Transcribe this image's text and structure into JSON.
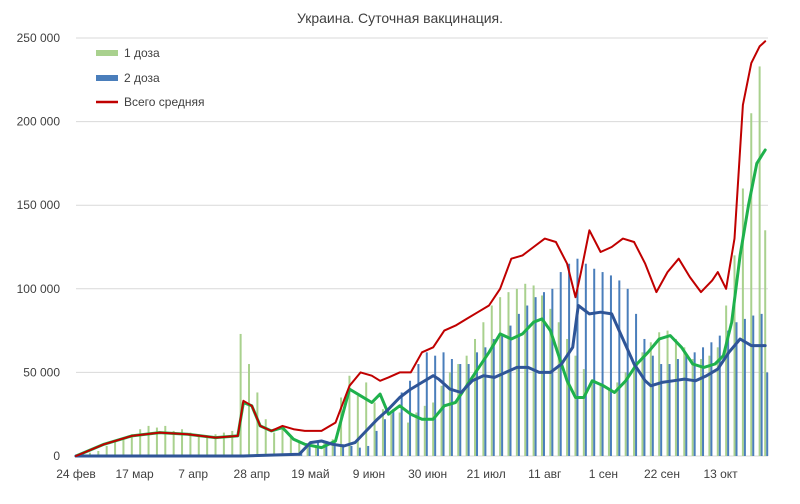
{
  "chart_data": {
    "type": "bar",
    "title": "Украина. Суточная вакцинация.",
    "xlabel": "",
    "ylabel": "",
    "ylim": [
      0,
      250000
    ],
    "y_ticks": [
      0,
      50000,
      100000,
      150000,
      200000,
      250000
    ],
    "y_tick_labels": [
      "0",
      "50 000",
      "100 000",
      "150 000",
      "200 000",
      "250 000"
    ],
    "x_range_days": [
      0,
      248
    ],
    "x_ticks": [
      0,
      21,
      42,
      63,
      84,
      105,
      126,
      147,
      168,
      189,
      210,
      231
    ],
    "x_tick_labels": [
      "24 фев",
      "17 мар",
      "7 апр",
      "28 апр",
      "19 май",
      "9 июн",
      "30 июн",
      "21 июл",
      "11 авг",
      "1 сен",
      "22 сен",
      "13 окт"
    ],
    "grid": "horizontal",
    "legend": {
      "position": "top-left",
      "entries": [
        "1 доза",
        "2 доза",
        "Всего средняя"
      ]
    },
    "colors": {
      "dose1": "#a9d18e",
      "dose2": "#4a7ebb",
      "total_avg": "#c00000",
      "dose1_avg": "#1fb14c",
      "dose2_avg": "#2f5597"
    },
    "series": [
      {
        "name": "1 доза",
        "kind": "bar",
        "points": [
          [
            2,
            1000
          ],
          [
            5,
            2000
          ],
          [
            8,
            3000
          ],
          [
            11,
            6000
          ],
          [
            14,
            9000
          ],
          [
            17,
            11000
          ],
          [
            20,
            13000
          ],
          [
            23,
            16000
          ],
          [
            26,
            18000
          ],
          [
            29,
            17000
          ],
          [
            32,
            18000
          ],
          [
            35,
            15000
          ],
          [
            38,
            16000
          ],
          [
            41,
            14000
          ],
          [
            44,
            13000
          ],
          [
            47,
            12000
          ],
          [
            50,
            13000
          ],
          [
            53,
            14000
          ],
          [
            56,
            15000
          ],
          [
            59,
            73000
          ],
          [
            62,
            55000
          ],
          [
            65,
            38000
          ],
          [
            68,
            22000
          ],
          [
            71,
            14000
          ],
          [
            74,
            18000
          ],
          [
            77,
            11000
          ],
          [
            80,
            8000
          ],
          [
            83,
            6000
          ],
          [
            86,
            6000
          ],
          [
            89,
            8000
          ],
          [
            92,
            10000
          ],
          [
            95,
            35000
          ],
          [
            98,
            48000
          ],
          [
            101,
            36000
          ],
          [
            104,
            44000
          ],
          [
            107,
            32000
          ],
          [
            110,
            28000
          ],
          [
            113,
            25000
          ],
          [
            116,
            26000
          ],
          [
            119,
            20000
          ],
          [
            122,
            26000
          ],
          [
            125,
            30000
          ],
          [
            128,
            32000
          ],
          [
            131,
            42000
          ],
          [
            134,
            50000
          ],
          [
            137,
            55000
          ],
          [
            140,
            60000
          ],
          [
            143,
            70000
          ],
          [
            146,
            80000
          ],
          [
            149,
            90000
          ],
          [
            152,
            95000
          ],
          [
            155,
            98000
          ],
          [
            158,
            100000
          ],
          [
            161,
            103000
          ],
          [
            164,
            102000
          ],
          [
            167,
            96000
          ],
          [
            170,
            88000
          ],
          [
            173,
            80000
          ],
          [
            176,
            70000
          ],
          [
            179,
            60000
          ],
          [
            182,
            52000
          ],
          [
            185,
            45000
          ],
          [
            188,
            43000
          ],
          [
            191,
            40000
          ],
          [
            194,
            44000
          ],
          [
            197,
            50000
          ],
          [
            200,
            56000
          ],
          [
            203,
            62000
          ],
          [
            206,
            68000
          ],
          [
            209,
            74000
          ],
          [
            212,
            75000
          ],
          [
            215,
            70000
          ],
          [
            218,
            65000
          ],
          [
            221,
            58000
          ],
          [
            224,
            58000
          ],
          [
            227,
            60000
          ],
          [
            230,
            65000
          ],
          [
            233,
            90000
          ],
          [
            236,
            120000
          ],
          [
            239,
            160000
          ],
          [
            242,
            205000
          ],
          [
            245,
            233000
          ],
          [
            247,
            135000
          ]
        ]
      },
      {
        "name": "2 доза",
        "kind": "bar",
        "points": [
          [
            80,
            3000
          ],
          [
            83,
            6000
          ],
          [
            86,
            9000
          ],
          [
            89,
            9000
          ],
          [
            92,
            8000
          ],
          [
            95,
            7000
          ],
          [
            98,
            6000
          ],
          [
            101,
            5000
          ],
          [
            104,
            6000
          ],
          [
            107,
            15000
          ],
          [
            110,
            22000
          ],
          [
            113,
            28000
          ],
          [
            116,
            38000
          ],
          [
            119,
            45000
          ],
          [
            122,
            55000
          ],
          [
            125,
            62000
          ],
          [
            128,
            60000
          ],
          [
            131,
            62000
          ],
          [
            134,
            58000
          ],
          [
            137,
            55000
          ],
          [
            140,
            55000
          ],
          [
            143,
            62000
          ],
          [
            146,
            65000
          ],
          [
            149,
            70000
          ],
          [
            152,
            72000
          ],
          [
            155,
            78000
          ],
          [
            158,
            85000
          ],
          [
            161,
            90000
          ],
          [
            164,
            95000
          ],
          [
            167,
            98000
          ],
          [
            170,
            100000
          ],
          [
            173,
            110000
          ],
          [
            176,
            115000
          ],
          [
            179,
            118000
          ],
          [
            182,
            115000
          ],
          [
            185,
            112000
          ],
          [
            188,
            110000
          ],
          [
            191,
            108000
          ],
          [
            194,
            105000
          ],
          [
            197,
            100000
          ],
          [
            200,
            85000
          ],
          [
            203,
            70000
          ],
          [
            206,
            60000
          ],
          [
            209,
            55000
          ],
          [
            212,
            55000
          ],
          [
            215,
            58000
          ],
          [
            218,
            60000
          ],
          [
            221,
            62000
          ],
          [
            224,
            65000
          ],
          [
            227,
            68000
          ],
          [
            230,
            72000
          ],
          [
            233,
            75000
          ],
          [
            236,
            80000
          ],
          [
            239,
            82000
          ],
          [
            242,
            84000
          ],
          [
            245,
            85000
          ],
          [
            247,
            50000
          ]
        ]
      },
      {
        "name": "1 доза средняя",
        "kind": "line",
        "points": [
          [
            0,
            0
          ],
          [
            10,
            7000
          ],
          [
            20,
            12000
          ],
          [
            30,
            14000
          ],
          [
            40,
            13000
          ],
          [
            50,
            11000
          ],
          [
            58,
            12000
          ],
          [
            60,
            32000
          ],
          [
            63,
            30000
          ],
          [
            66,
            18000
          ],
          [
            70,
            15000
          ],
          [
            74,
            17000
          ],
          [
            78,
            10000
          ],
          [
            82,
            7000
          ],
          [
            88,
            5000
          ],
          [
            93,
            9000
          ],
          [
            98,
            40000
          ],
          [
            102,
            36000
          ],
          [
            106,
            32000
          ],
          [
            109,
            37000
          ],
          [
            112,
            25000
          ],
          [
            116,
            30000
          ],
          [
            120,
            25000
          ],
          [
            124,
            22000
          ],
          [
            128,
            22000
          ],
          [
            132,
            30000
          ],
          [
            136,
            32000
          ],
          [
            140,
            42000
          ],
          [
            144,
            52000
          ],
          [
            148,
            62000
          ],
          [
            152,
            73000
          ],
          [
            156,
            70000
          ],
          [
            160,
            73000
          ],
          [
            164,
            80000
          ],
          [
            167,
            82000
          ],
          [
            170,
            75000
          ],
          [
            173,
            60000
          ],
          [
            176,
            45000
          ],
          [
            179,
            35000
          ],
          [
            182,
            35000
          ],
          [
            185,
            45000
          ],
          [
            189,
            42000
          ],
          [
            193,
            38000
          ],
          [
            197,
            45000
          ],
          [
            201,
            55000
          ],
          [
            205,
            62000
          ],
          [
            209,
            70000
          ],
          [
            213,
            72000
          ],
          [
            217,
            65000
          ],
          [
            221,
            55000
          ],
          [
            225,
            53000
          ],
          [
            229,
            55000
          ],
          [
            232,
            60000
          ],
          [
            235,
            80000
          ],
          [
            238,
            120000
          ],
          [
            241,
            150000
          ],
          [
            244,
            175000
          ],
          [
            247,
            183000
          ]
        ]
      },
      {
        "name": "2 доза средняя",
        "kind": "line",
        "points": [
          [
            0,
            0
          ],
          [
            30,
            0
          ],
          [
            60,
            0
          ],
          [
            80,
            1000
          ],
          [
            84,
            8000
          ],
          [
            88,
            9000
          ],
          [
            92,
            7000
          ],
          [
            96,
            6000
          ],
          [
            100,
            8000
          ],
          [
            104,
            15000
          ],
          [
            108,
            22000
          ],
          [
            112,
            28000
          ],
          [
            116,
            35000
          ],
          [
            120,
            40000
          ],
          [
            124,
            44000
          ],
          [
            128,
            48000
          ],
          [
            130,
            46000
          ],
          [
            134,
            40000
          ],
          [
            138,
            38000
          ],
          [
            142,
            45000
          ],
          [
            146,
            48000
          ],
          [
            150,
            47000
          ],
          [
            154,
            50000
          ],
          [
            158,
            53000
          ],
          [
            162,
            53000
          ],
          [
            166,
            50000
          ],
          [
            170,
            50000
          ],
          [
            174,
            55000
          ],
          [
            178,
            65000
          ],
          [
            180,
            90000
          ],
          [
            184,
            85000
          ],
          [
            188,
            86000
          ],
          [
            192,
            85000
          ],
          [
            196,
            70000
          ],
          [
            200,
            55000
          ],
          [
            204,
            45000
          ],
          [
            206,
            42000
          ],
          [
            210,
            44000
          ],
          [
            214,
            45000
          ],
          [
            218,
            46000
          ],
          [
            222,
            45000
          ],
          [
            226,
            48000
          ],
          [
            230,
            52000
          ],
          [
            234,
            62000
          ],
          [
            238,
            70000
          ],
          [
            242,
            66000
          ],
          [
            247,
            66000
          ]
        ]
      },
      {
        "name": "Всего средняя",
        "kind": "line",
        "points": [
          [
            0,
            0
          ],
          [
            10,
            7000
          ],
          [
            20,
            12000
          ],
          [
            30,
            14000
          ],
          [
            40,
            13000
          ],
          [
            50,
            11000
          ],
          [
            58,
            12000
          ],
          [
            60,
            33000
          ],
          [
            63,
            30000
          ],
          [
            66,
            18000
          ],
          [
            70,
            15000
          ],
          [
            74,
            18000
          ],
          [
            78,
            16000
          ],
          [
            82,
            15000
          ],
          [
            88,
            15000
          ],
          [
            93,
            20000
          ],
          [
            98,
            42000
          ],
          [
            102,
            50000
          ],
          [
            106,
            48000
          ],
          [
            109,
            45000
          ],
          [
            112,
            47000
          ],
          [
            116,
            50000
          ],
          [
            120,
            50000
          ],
          [
            124,
            62000
          ],
          [
            128,
            65000
          ],
          [
            132,
            75000
          ],
          [
            136,
            78000
          ],
          [
            140,
            82000
          ],
          [
            144,
            86000
          ],
          [
            148,
            90000
          ],
          [
            152,
            100000
          ],
          [
            156,
            118000
          ],
          [
            160,
            120000
          ],
          [
            164,
            125000
          ],
          [
            168,
            130000
          ],
          [
            172,
            128000
          ],
          [
            176,
            115000
          ],
          [
            179,
            95000
          ],
          [
            181,
            110000
          ],
          [
            184,
            135000
          ],
          [
            188,
            122000
          ],
          [
            192,
            125000
          ],
          [
            196,
            130000
          ],
          [
            200,
            128000
          ],
          [
            204,
            115000
          ],
          [
            208,
            98000
          ],
          [
            212,
            110000
          ],
          [
            216,
            118000
          ],
          [
            220,
            107000
          ],
          [
            224,
            98000
          ],
          [
            228,
            105000
          ],
          [
            230,
            110000
          ],
          [
            233,
            100000
          ],
          [
            236,
            130000
          ],
          [
            239,
            210000
          ],
          [
            242,
            235000
          ],
          [
            245,
            245000
          ],
          [
            247,
            248000
          ]
        ]
      }
    ]
  }
}
